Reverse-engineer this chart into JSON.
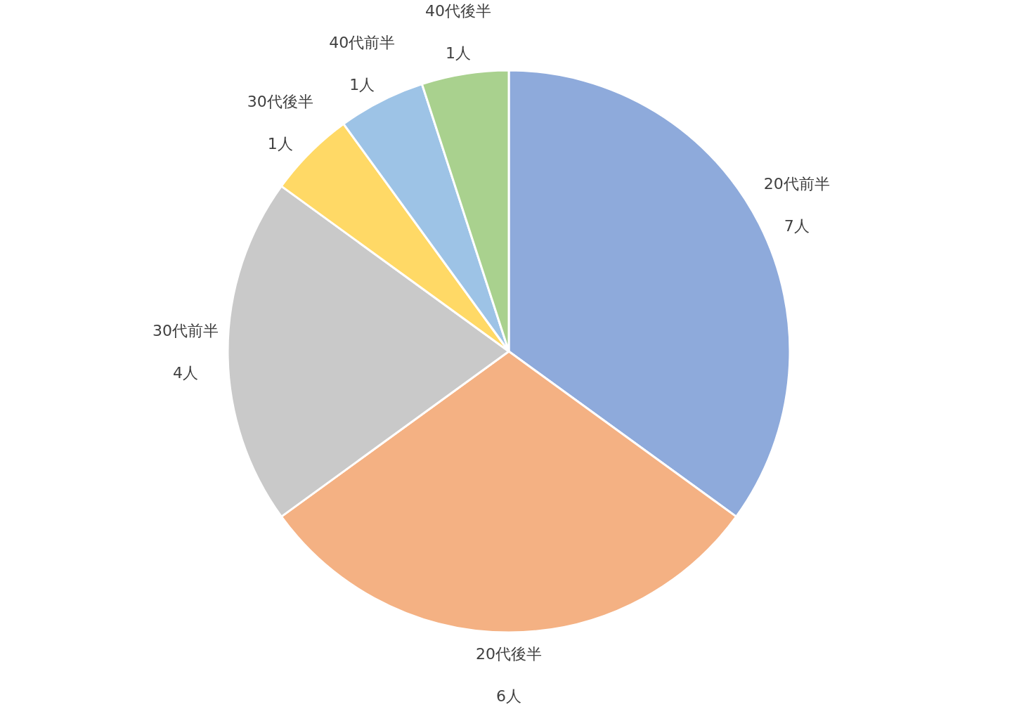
{
  "chart_data": {
    "type": "pie",
    "categories": [
      "20代前半",
      "20代後半",
      "30代前半",
      "30代後半",
      "40代前半",
      "40代後半"
    ],
    "values": [
      7,
      6,
      4,
      1,
      1,
      1
    ],
    "value_labels": [
      "7人",
      "6人",
      "4人",
      "1人",
      "1人",
      "1人"
    ],
    "colors": [
      "#8eaadb",
      "#f4b183",
      "#c9c9c9",
      "#ffd966",
      "#9dc3e6",
      "#a9d18e"
    ],
    "legend": false
  }
}
